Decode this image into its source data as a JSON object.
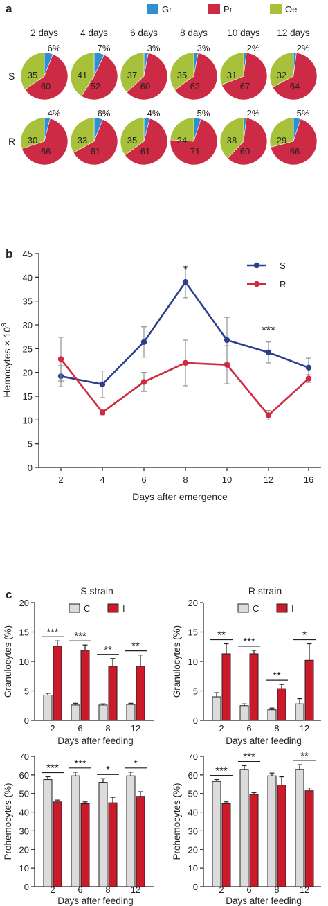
{
  "colors": {
    "gr": "#2f8fcf",
    "pr": "#cc2a45",
    "oe": "#a7c23a",
    "s_line": "#2e3e8e",
    "r_line": "#cf2a3e",
    "bar_c": "#dcdcdc",
    "bar_i": "#cc1a2a"
  },
  "panel_labels": [
    "a",
    "b",
    "c"
  ],
  "chart_data": [
    {
      "type": "pie",
      "panel": "a",
      "legend": [
        "Gr",
        "Pr",
        "Oe"
      ],
      "columns": [
        "2 days",
        "4 days",
        "6 days",
        "8 days",
        "10 days",
        "12 days"
      ],
      "rows": [
        {
          "name": "S",
          "slices": [
            {
              "gr": "6%",
              "pr": "60",
              "oe": "35",
              "values": [
                6,
                60,
                35
              ]
            },
            {
              "gr": "7%",
              "pr": "52",
              "oe": "41",
              "values": [
                7,
                52,
                41
              ]
            },
            {
              "gr": "3%",
              "pr": "60",
              "oe": "37",
              "values": [
                3,
                60,
                37
              ]
            },
            {
              "gr": "3%",
              "pr": "62",
              "oe": "35",
              "values": [
                3,
                62,
                35
              ]
            },
            {
              "gr": "2%",
              "pr": "67",
              "oe": "31",
              "values": [
                2,
                67,
                31
              ]
            },
            {
              "gr": "2%",
              "pr": "64",
              "oe": "32",
              "values": [
                2,
                64,
                32
              ]
            }
          ]
        },
        {
          "name": "R",
          "slices": [
            {
              "gr": "4%",
              "pr": "66",
              "oe": "30",
              "values": [
                4,
                66,
                30
              ]
            },
            {
              "gr": "6%",
              "pr": "61",
              "oe": "33",
              "values": [
                6,
                61,
                33
              ]
            },
            {
              "gr": "4%",
              "pr": "61",
              "oe": "35",
              "values": [
                4,
                61,
                35
              ]
            },
            {
              "gr": "5%",
              "pr": "71",
              "oe": "24",
              "values": [
                5,
                71,
                24
              ]
            },
            {
              "gr": "2%",
              "pr": "60",
              "oe": "38",
              "values": [
                2,
                60,
                38
              ]
            },
            {
              "gr": "5%",
              "pr": "66",
              "oe": "29",
              "values": [
                5,
                66,
                29
              ]
            }
          ]
        }
      ]
    },
    {
      "type": "line",
      "panel": "b",
      "ylabel": "Hemocytes × 10",
      "ylabel_sup": "3",
      "xlabel": "Days after emergence",
      "categories": [
        "2",
        "4",
        "6",
        "8",
        "10",
        "12",
        "16"
      ],
      "ylim": [
        0,
        45
      ],
      "yticks": [
        "0",
        "5",
        "10",
        "15",
        "20",
        "25",
        "30",
        "35",
        "40",
        "45"
      ],
      "series": [
        {
          "name": "S",
          "values": [
            19.2,
            17.5,
            26.4,
            39.0,
            26.8,
            24.2,
            21.0
          ],
          "err": [
            2.2,
            2.8,
            3.2,
            3.3,
            4.8,
            2.2,
            2.0
          ]
        },
        {
          "name": "R",
          "values": [
            22.8,
            11.6,
            18.0,
            22.0,
            21.6,
            11.0,
            18.7
          ],
          "err": [
            4.6,
            0.5,
            2.0,
            4.8,
            4.0,
            1.0,
            0.8
          ]
        }
      ],
      "annotations": [
        {
          "at": "8",
          "text": "*"
        },
        {
          "at": "12",
          "text": "***"
        }
      ]
    },
    {
      "type": "bar",
      "panel": "c",
      "title": "S strain",
      "ylabel": "Granulocytes (%)",
      "xlabel": "Days after feeding",
      "categories": [
        "2",
        "6",
        "8",
        "12"
      ],
      "ylim": [
        0,
        20
      ],
      "yticks": [
        "0",
        "5",
        "10",
        "15",
        "20"
      ],
      "legend": [
        "C",
        "I"
      ],
      "series": [
        {
          "name": "C",
          "values": [
            4.3,
            2.6,
            2.6,
            2.7
          ],
          "err": [
            0.3,
            0.3,
            0.2,
            0.2
          ]
        },
        {
          "name": "I",
          "values": [
            12.6,
            11.9,
            9.2,
            9.2
          ],
          "err": [
            0.9,
            0.9,
            1.3,
            1.9
          ]
        }
      ],
      "significance": [
        "***",
        "***",
        "**",
        "**"
      ]
    },
    {
      "type": "bar",
      "panel": "c",
      "title": "R strain",
      "ylabel": "Granulocytes (%)",
      "xlabel": "Days after feeding",
      "categories": [
        "2",
        "6",
        "8",
        "12"
      ],
      "ylim": [
        0,
        20
      ],
      "yticks": [
        "0",
        "5",
        "10",
        "15",
        "20"
      ],
      "legend": [
        "C",
        "I"
      ],
      "series": [
        {
          "name": "C",
          "values": [
            4.0,
            2.5,
            1.8,
            2.8
          ],
          "err": [
            0.7,
            0.3,
            0.3,
            0.9
          ]
        },
        {
          "name": "I",
          "values": [
            11.3,
            11.3,
            5.4,
            10.2
          ],
          "err": [
            1.7,
            0.6,
            0.7,
            2.8
          ]
        }
      ],
      "significance": [
        "**",
        "***",
        "**",
        "*"
      ]
    },
    {
      "type": "bar",
      "panel": "c",
      "ylabel": "Prohemocytes (%)",
      "xlabel": "Days after feeding",
      "categories": [
        "2",
        "6",
        "8",
        "12"
      ],
      "ylim": [
        0,
        70
      ],
      "yticks": [
        "0",
        "10",
        "20",
        "30",
        "40",
        "50",
        "60",
        "70"
      ],
      "series": [
        {
          "name": "C",
          "values": [
            57.5,
            59.5,
            56.0,
            59.5
          ],
          "err": [
            1.5,
            2.0,
            2.0,
            2.0
          ]
        },
        {
          "name": "I",
          "values": [
            45.5,
            44.5,
            45.0,
            48.5
          ],
          "err": [
            1.0,
            1.0,
            3.0,
            2.5
          ]
        }
      ],
      "significance": [
        "***",
        "***",
        "*",
        "*"
      ]
    },
    {
      "type": "bar",
      "panel": "c",
      "ylabel": "Prohemocytes (%)",
      "xlabel": "Days after feeding",
      "categories": [
        "2",
        "6",
        "8",
        "12"
      ],
      "ylim": [
        0,
        70
      ],
      "yticks": [
        "0",
        "10",
        "20",
        "30",
        "40",
        "50",
        "60",
        "70"
      ],
      "series": [
        {
          "name": "C",
          "values": [
            56.5,
            63.0,
            59.5,
            63.0
          ],
          "err": [
            1.0,
            2.0,
            1.5,
            2.5
          ]
        },
        {
          "name": "I",
          "values": [
            44.5,
            49.5,
            54.5,
            51.5
          ],
          "err": [
            1.0,
            1.0,
            4.5,
            1.5
          ]
        }
      ],
      "significance": [
        "***",
        "***",
        "",
        "**"
      ]
    }
  ]
}
